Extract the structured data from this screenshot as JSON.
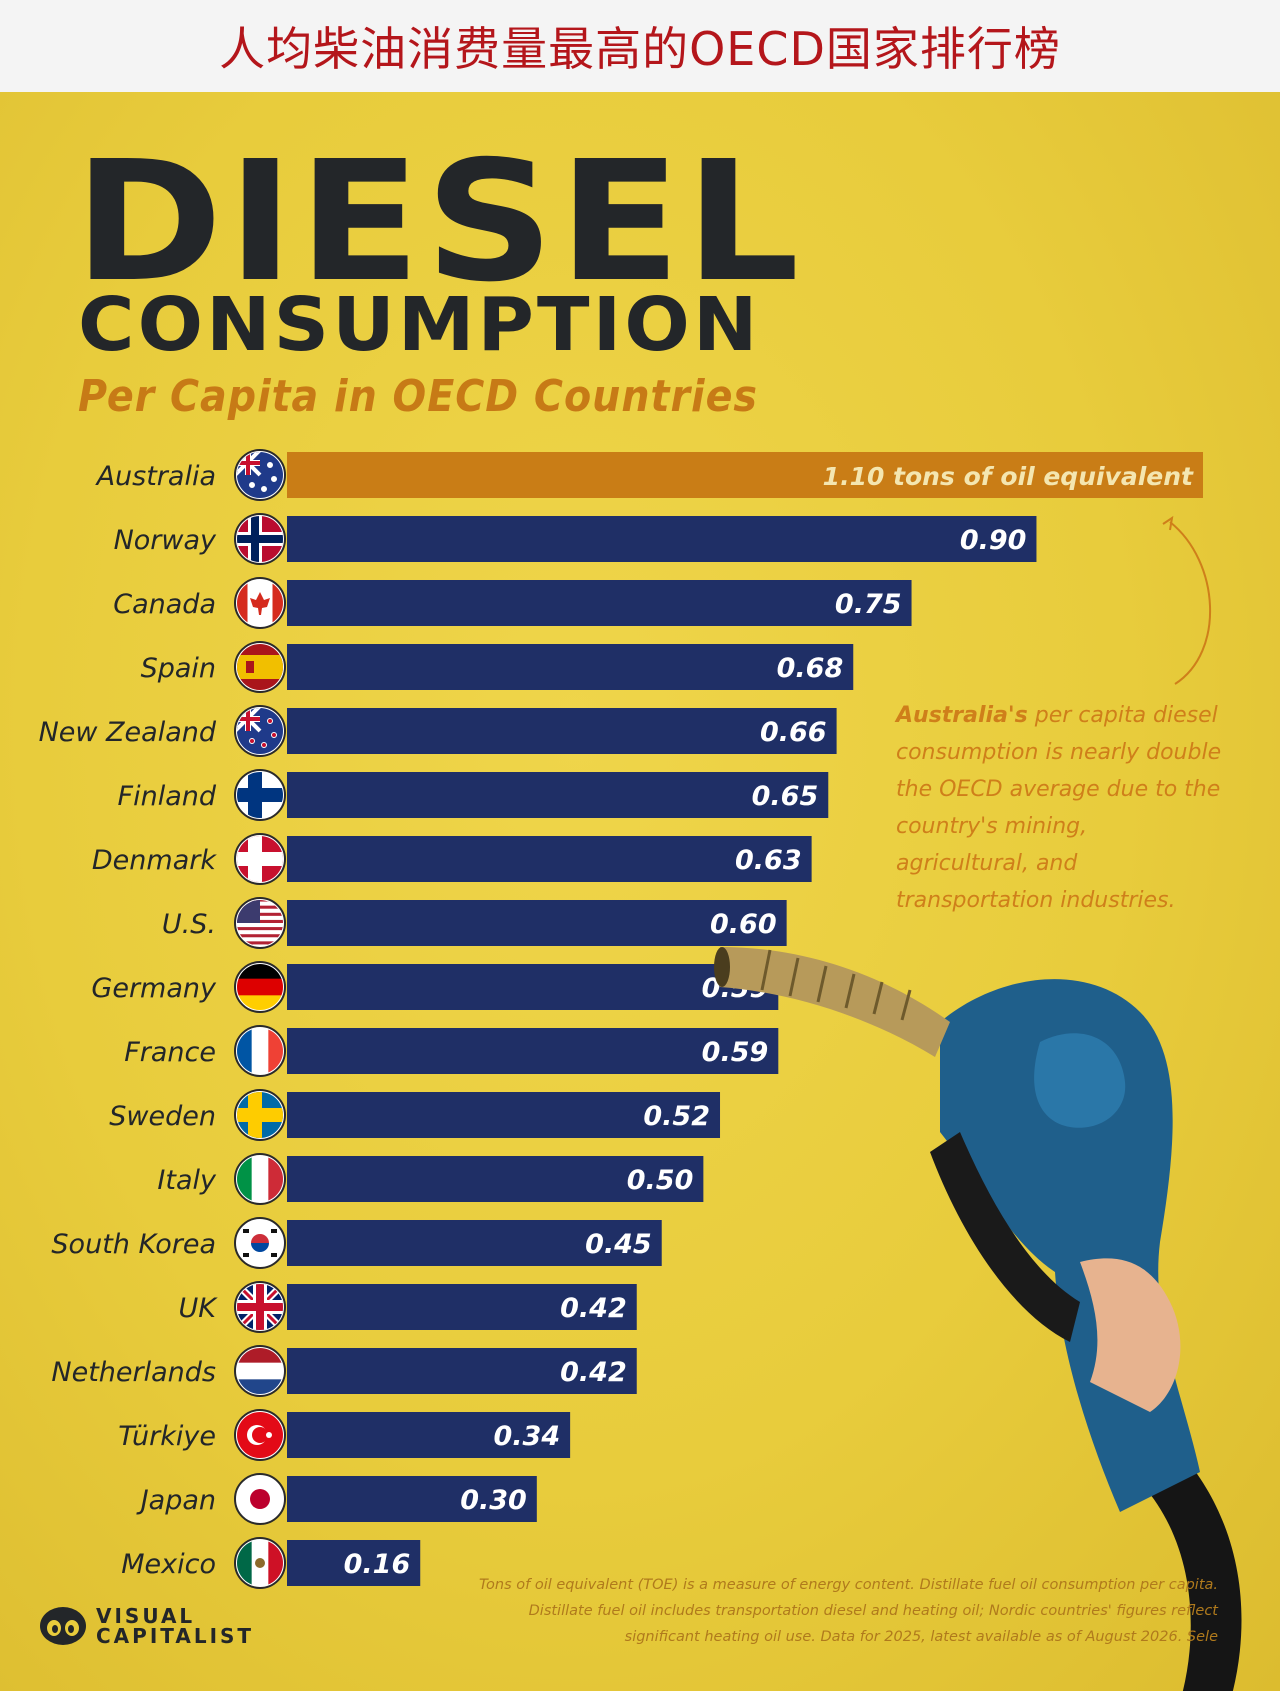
{
  "banner": {
    "title": "人均柴油消费量最高的OECD国家排行榜"
  },
  "poster": {
    "title_main": "DIESEL",
    "title_sub": "CONSUMPTION",
    "subtitle": "Per Capita in OECD Countries",
    "annotation_bold": "Australia's",
    "annotation_rest": " per capita diesel consumption is nearly double the OECD average due to the country's mining, agricultural, and transportation industries.",
    "footnote": "Tons of oil equivalent (TOE) is a measure of energy content. Distillate fuel oil consumption per capita. Distillate fuel oil includes transportation diesel and heating oil; Nordic countries' figures reflect significant heating oil use. Data for 2025, latest available as of August 2026. Sele",
    "brand_line1": "VISUAL",
    "brand_line2": "CAPITALIST"
  },
  "colors": {
    "background": "#e8cc3c",
    "bar": "#1f2f66",
    "highlight_bar": "#c97d16",
    "text_dark": "#232629",
    "accent": "#c77a16",
    "banner_text": "#b4161b"
  },
  "chart_data": {
    "type": "bar",
    "orientation": "horizontal",
    "title": "DIESEL CONSUMPTION",
    "subtitle": "Per Capita in OECD Countries",
    "unit_label": "tons of oil equivalent",
    "categories": [
      "Australia",
      "Norway",
      "Canada",
      "Spain",
      "New Zealand",
      "Finland",
      "Denmark",
      "U.S.",
      "Germany",
      "France",
      "Sweden",
      "Italy",
      "South Korea",
      "UK",
      "Netherlands",
      "Türkiye",
      "Japan",
      "Mexico"
    ],
    "values": [
      1.1,
      0.9,
      0.75,
      0.68,
      0.66,
      0.65,
      0.63,
      0.6,
      0.59,
      0.59,
      0.52,
      0.5,
      0.45,
      0.42,
      0.42,
      0.34,
      0.3,
      0.16
    ],
    "value_labels": [
      "1.10 tons of oil equivalent",
      "0.90",
      "0.75",
      "0.68",
      "0.66",
      "0.65",
      "0.63",
      "0.60",
      "0.59",
      "0.59",
      "0.52",
      "0.50",
      "0.45",
      "0.42",
      "0.42",
      "0.34",
      "0.30",
      "0.16"
    ],
    "flags": [
      "flag-australia-icon",
      "flag-norway-icon",
      "flag-canada-icon",
      "flag-spain-icon",
      "flag-new-zealand-icon",
      "flag-finland-icon",
      "flag-denmark-icon",
      "flag-us-icon",
      "flag-germany-icon",
      "flag-france-icon",
      "flag-sweden-icon",
      "flag-italy-icon",
      "flag-south-korea-icon",
      "flag-uk-icon",
      "flag-netherlands-icon",
      "flag-turkiye-icon",
      "flag-japan-icon",
      "flag-mexico-icon"
    ],
    "highlight": "Australia",
    "xlim": [
      0,
      1.1
    ],
    "grid": false,
    "legend": "none"
  }
}
